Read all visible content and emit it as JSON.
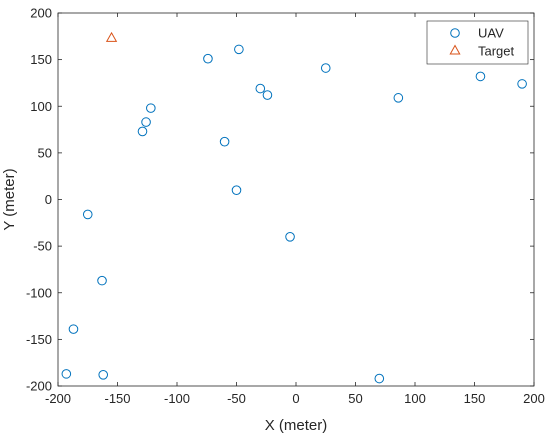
{
  "chart_data": {
    "type": "scatter",
    "title": "",
    "xlabel": "X (meter)",
    "ylabel": "Y (meter)",
    "xlim": [
      -200,
      200
    ],
    "ylim": [
      -200,
      200
    ],
    "xticks": [
      -200,
      -150,
      -100,
      -50,
      0,
      50,
      100,
      150,
      200
    ],
    "yticks": [
      -200,
      -150,
      -100,
      -50,
      0,
      50,
      100,
      150,
      200
    ],
    "grid": false,
    "legend_position": "top-right",
    "series": [
      {
        "name": "UAV",
        "marker": "circle",
        "color": "#0072BD",
        "points": [
          [
            -48,
            161
          ],
          [
            -74,
            151
          ],
          [
            -30,
            119
          ],
          [
            -24,
            112
          ],
          [
            25,
            141
          ],
          [
            86,
            109
          ],
          [
            155,
            132
          ],
          [
            190,
            124
          ],
          [
            -122,
            98
          ],
          [
            -126,
            83
          ],
          [
            -129,
            73
          ],
          [
            -60,
            62
          ],
          [
            -50,
            10
          ],
          [
            -5,
            -40
          ],
          [
            -175,
            -16
          ],
          [
            -163,
            -87
          ],
          [
            -187,
            -139
          ],
          [
            -193,
            -187
          ],
          [
            -162,
            -188
          ],
          [
            70,
            -192
          ]
        ]
      },
      {
        "name": "Target",
        "marker": "triangle",
        "color": "#D95319",
        "points": [
          [
            -155,
            173
          ]
        ]
      }
    ]
  }
}
